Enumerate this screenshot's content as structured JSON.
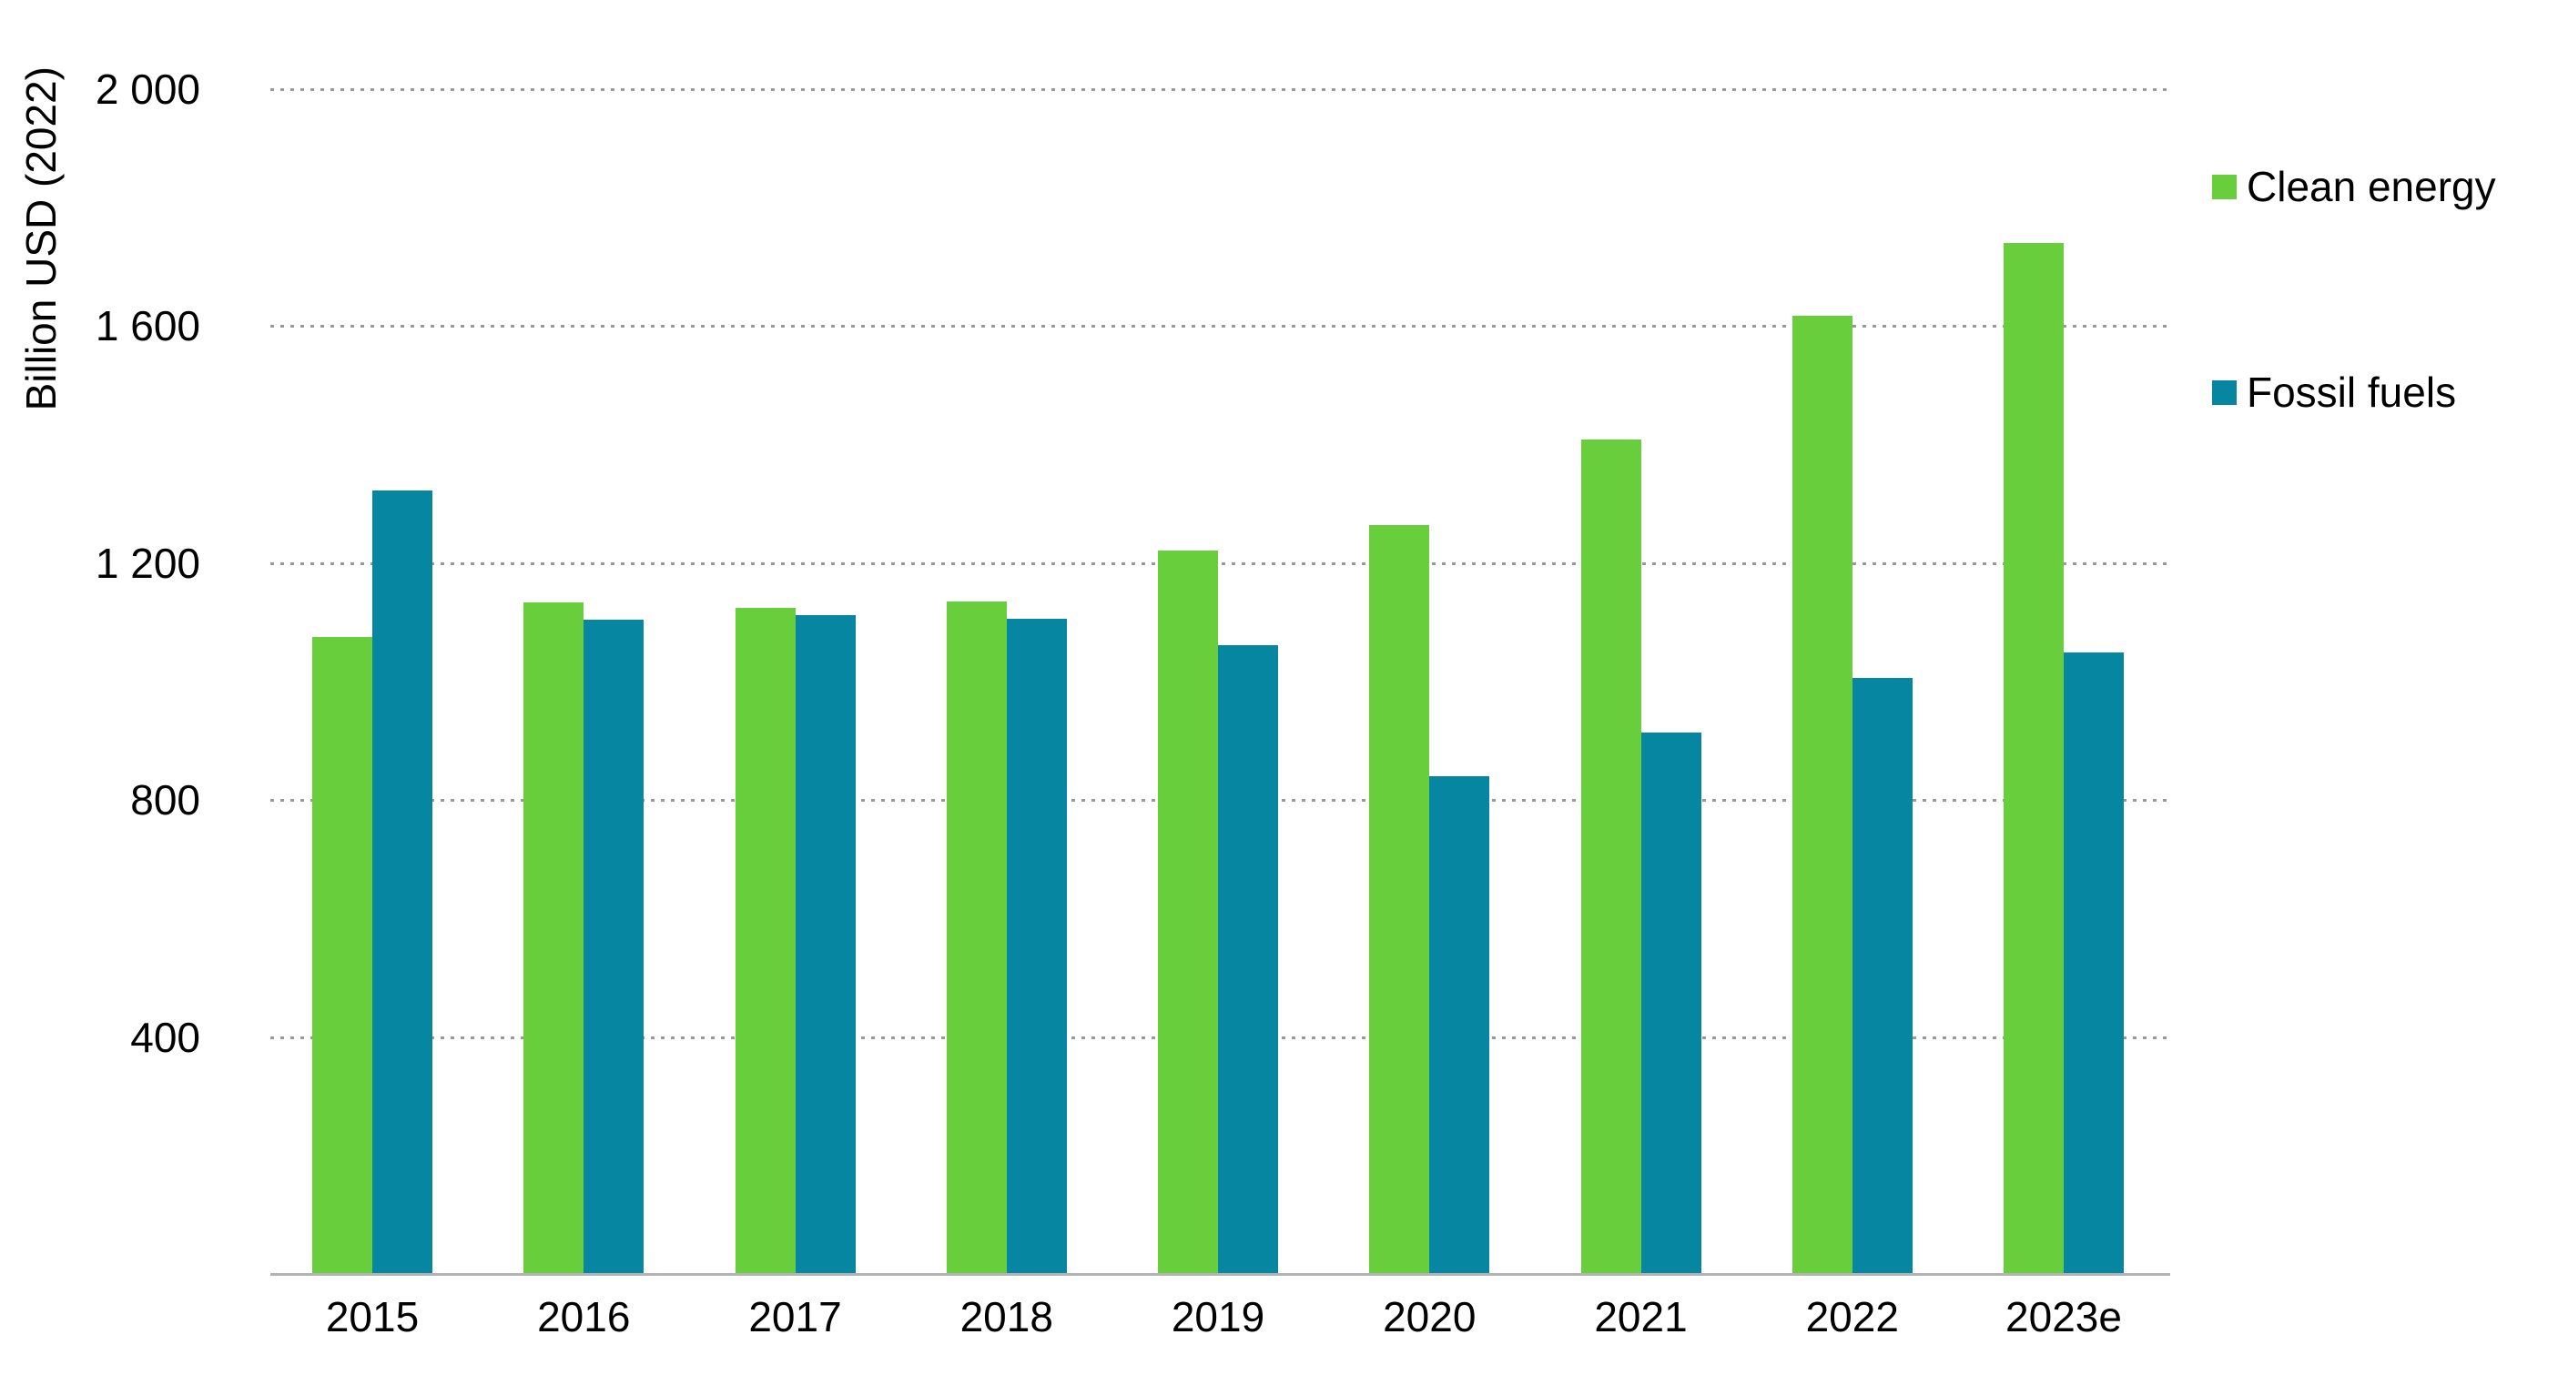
{
  "chart_data": {
    "type": "bar",
    "title": "",
    "ylabel": "Billion USD (2022)",
    "categories": [
      "2015",
      "2016",
      "2017",
      "2018",
      "2019",
      "2020",
      "2021",
      "2022",
      "2023e"
    ],
    "series": [
      {
        "name": "Clean energy",
        "color": "#68CE3C",
        "values": [
          1075,
          1133,
          1125,
          1135,
          1221,
          1264,
          1409,
          1617,
          1740
        ]
      },
      {
        "name": "Fossil fuels",
        "color": "#0686A0",
        "values": [
          1322,
          1104,
          1112,
          1106,
          1062,
          840,
          914,
          1006,
          1050
        ]
      }
    ],
    "y_axis": {
      "ticks": [
        {
          "value": 2000,
          "label": "2 000"
        },
        {
          "value": 1600,
          "label": "1 600"
        },
        {
          "value": 1200,
          "label": "1 200"
        },
        {
          "value": 800,
          "label": "800"
        },
        {
          "value": 400,
          "label": "400"
        }
      ]
    },
    "ylim": [
      0,
      2080
    ],
    "grid": "horizontal-dotted",
    "legend_position": "right",
    "colors": {
      "grid": "#999999",
      "axis_line": "#B3B3B3",
      "text": "#000000",
      "background": "#FFFFFF"
    }
  }
}
